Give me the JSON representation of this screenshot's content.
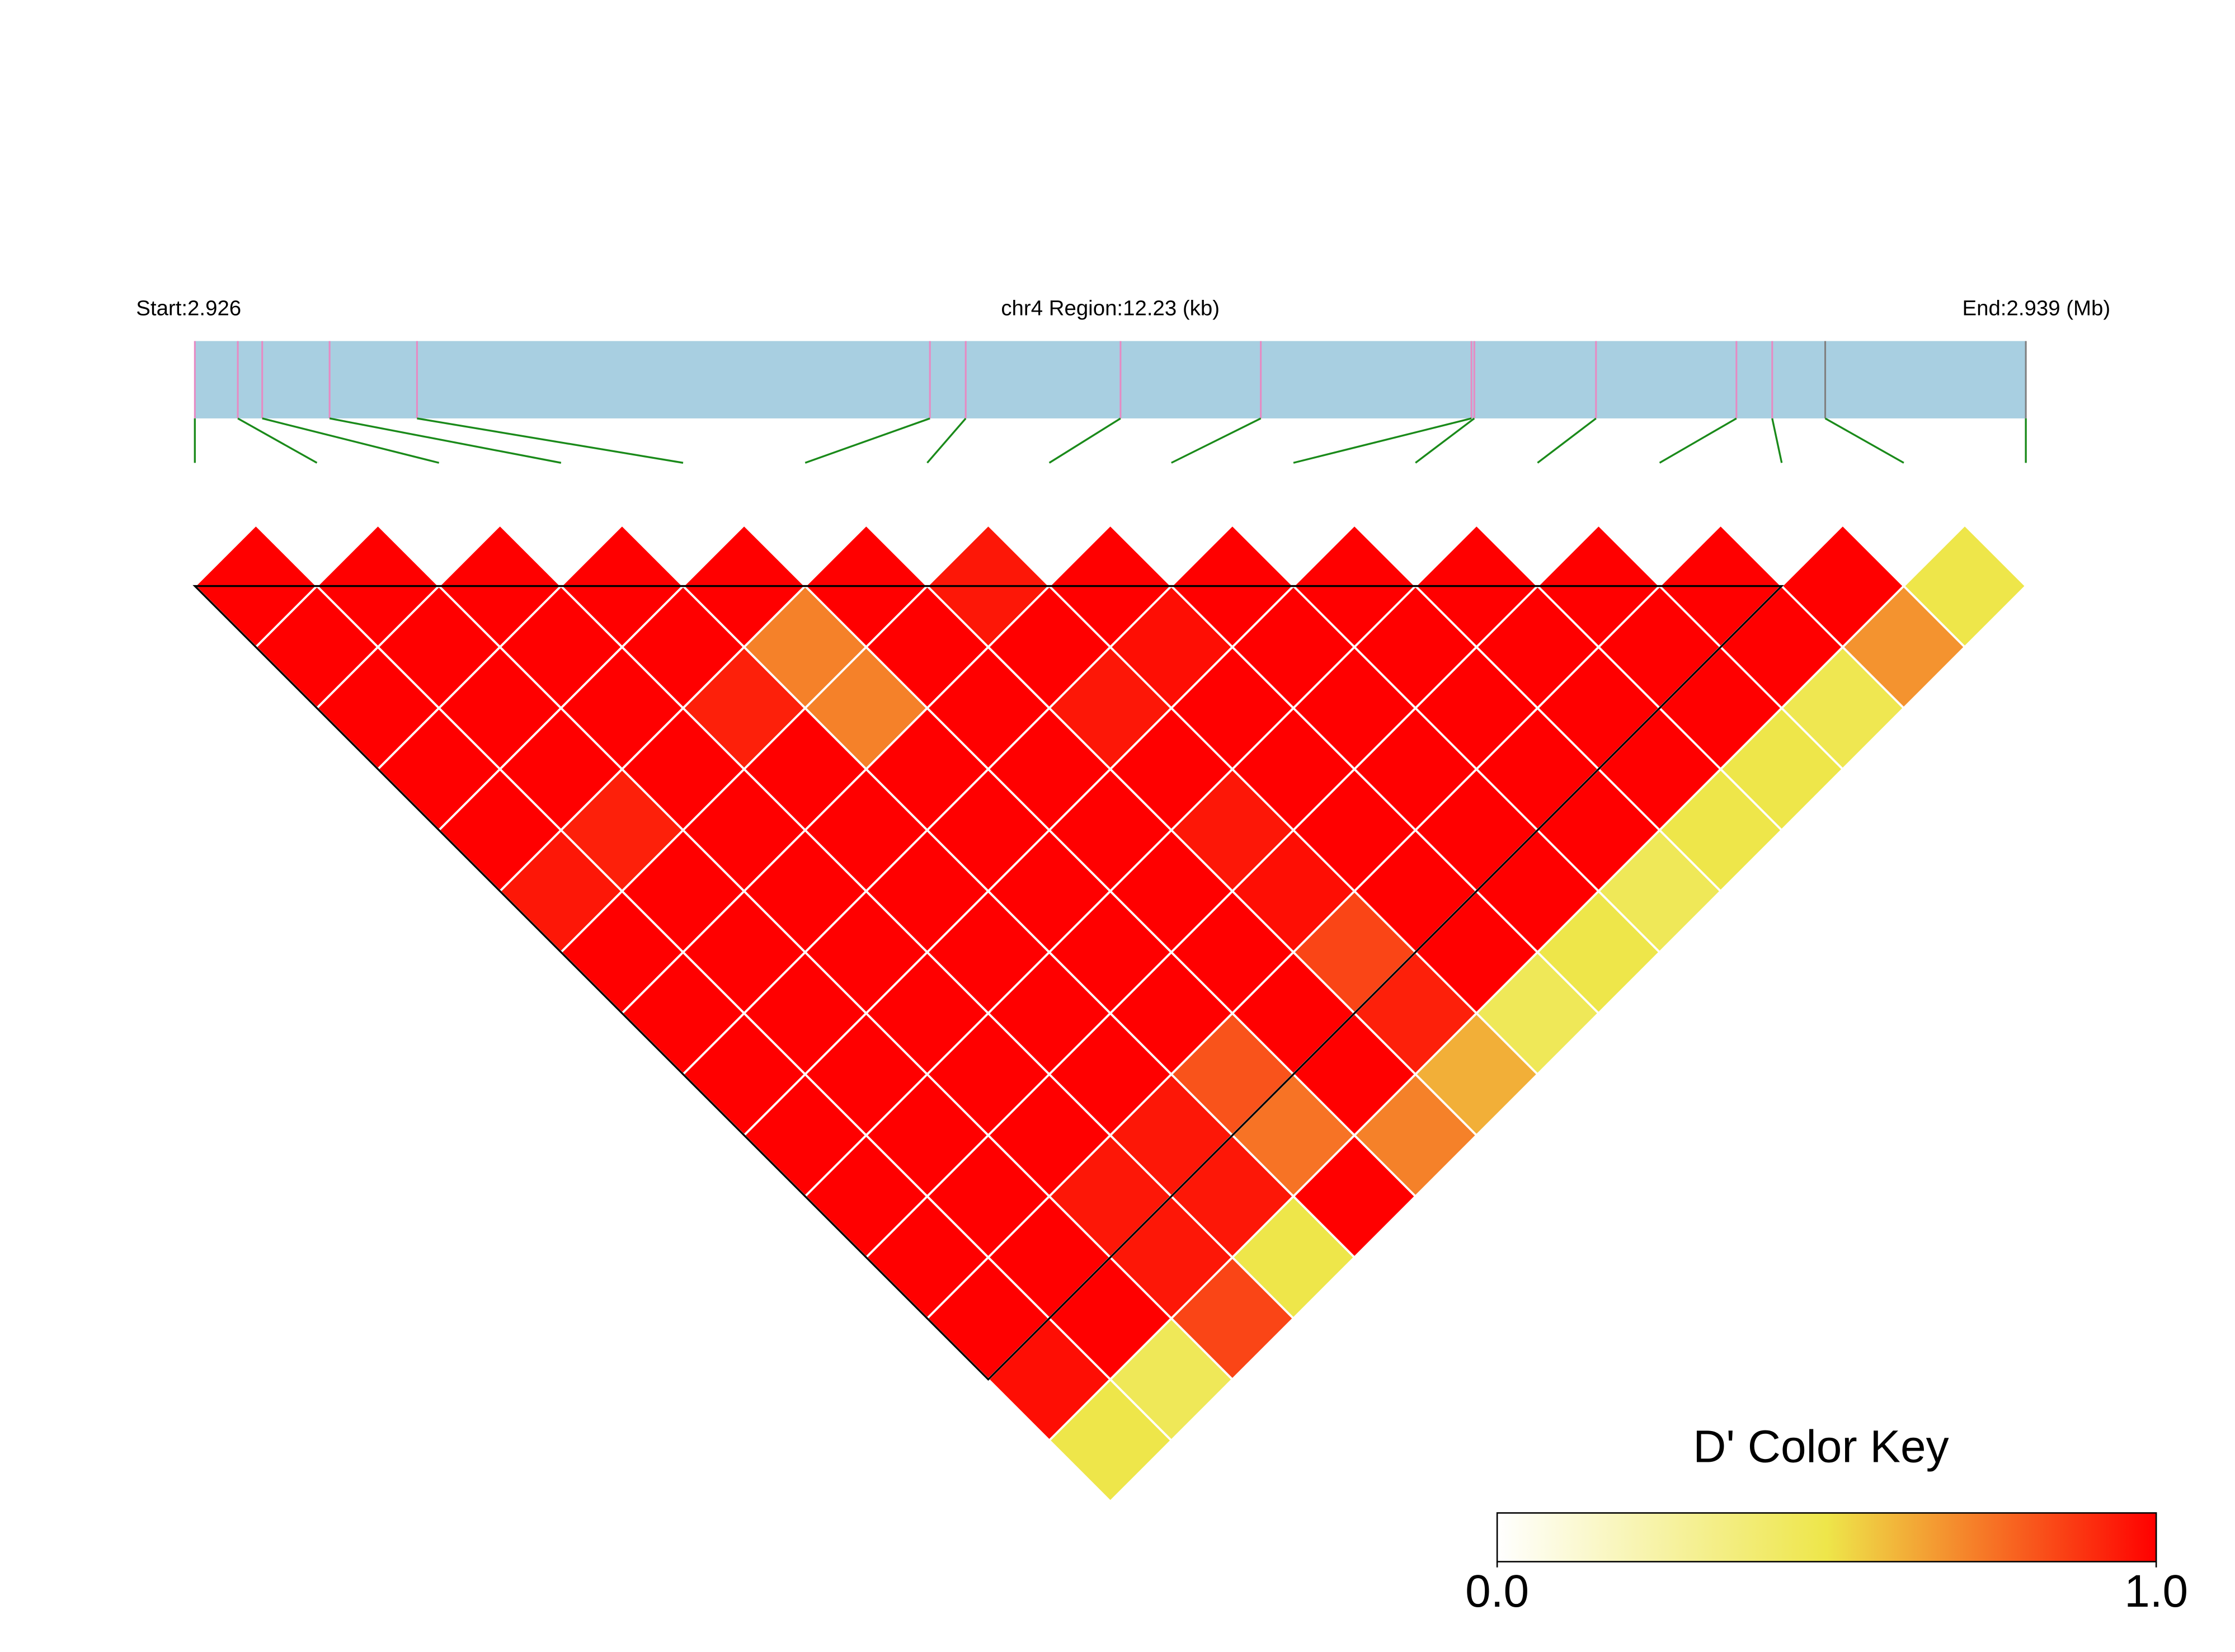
{
  "chart_data": {
    "type": "ld-heatmap",
    "start_label": "Start:2.926",
    "region_label": "chr4 Region:12.23 (kb)",
    "end_label": "End:2.939 (Mb)",
    "legend_title": "D' Color Key",
    "xlim": [
      0,
      12.23
    ],
    "snp_positions": [
      0,
      0.287,
      0.45,
      0.9,
      1.484,
      4.91,
      5.149,
      6.183,
      7.12,
      8.527,
      8.546,
      9.359,
      10.297,
      10.536,
      10.89,
      12.23
    ],
    "marker_colors": [
      "#e78ac3",
      "#e78ac3",
      "#e78ac3",
      "#e78ac3",
      "#e78ac3",
      "#e78ac3",
      "#e78ac3",
      "#e78ac3",
      "#e78ac3",
      "#e78ac3",
      "#e78ac3",
      "#e78ac3",
      "#e78ac3",
      "#e78ac3",
      "#808080",
      "#808080"
    ],
    "region_color": "#a8cfe1",
    "connector_color": "#1a8a1a",
    "values": [
      [
        1,
        1,
        1,
        1,
        1,
        0.95,
        1,
        1,
        1,
        1,
        1,
        1,
        1,
        0.97,
        0.5
      ],
      [
        1,
        1,
        1,
        1,
        0.93,
        1,
        1,
        1,
        1,
        1,
        1,
        1,
        1,
        0.46
      ],
      [
        1,
        1,
        1,
        1,
        1,
        1,
        1,
        1,
        1,
        1,
        0.95,
        0.95,
        0.85
      ],
      [
        1,
        1,
        0.93,
        1,
        1,
        1,
        1,
        1,
        1,
        0.95,
        0.95,
        0.5
      ],
      [
        1,
        0.72,
        0.72,
        1,
        1,
        1,
        1,
        1,
        0.82,
        0.75,
        1
      ],
      [
        1,
        1,
        1,
        1,
        1,
        1,
        1,
        1,
        1,
        0.72
      ],
      [
        0.95,
        1,
        0.95,
        1,
        0.95,
        0.97,
        0.85,
        0.93,
        0.62
      ],
      [
        1,
        0.97,
        1,
        1,
        1,
        1,
        1,
        0.46
      ],
      [
        1,
        1,
        1,
        1,
        1,
        1,
        0.5
      ],
      [
        1,
        1,
        1,
        1,
        1,
        0.46
      ],
      [
        1,
        1,
        1,
        1,
        0.5
      ],
      [
        1,
        1,
        1,
        0.5
      ],
      [
        1,
        1,
        0.48
      ],
      [
        1,
        0.68
      ],
      [
        0.5
      ]
    ],
    "blocks": [
      [
        0,
        13
      ]
    ],
    "colors": [
      "#ffffff",
      "#eee64a",
      "#ff0000"
    ],
    "clim": [
      0,
      1
    ],
    "cticks": [
      {
        "value": 0,
        "label": "0.0"
      },
      {
        "value": 1,
        "label": "1.0"
      }
    ]
  }
}
